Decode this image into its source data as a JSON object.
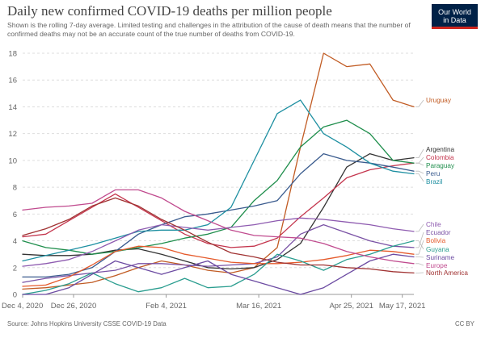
{
  "header": {
    "title": "Daily new confirmed COVID-19 deaths per million people",
    "subtitle": "Shown is the rolling 7-day average. Limited testing and challenges in the attribution of the cause of death means that the number of confirmed deaths may not be an accurate count of the true number of deaths from COVID-19.",
    "logo_line1": "Our World",
    "logo_line2": "in Data"
  },
  "footer": {
    "source": "Source: Johns Hopkins University CSSE COVID-19 Data",
    "license": "CC BY"
  },
  "chart_data": {
    "type": "line",
    "title": "Daily new confirmed COVID-19 deaths per million people",
    "xlabel": "",
    "ylabel": "",
    "x_domain_days": [
      0,
      169
    ],
    "ylim": [
      0,
      18
    ],
    "y_ticks": [
      0,
      2,
      4,
      6,
      8,
      10,
      12,
      14,
      16,
      18
    ],
    "x_ticks": [
      {
        "day": 0,
        "label": "Dec 4, 2020"
      },
      {
        "day": 22,
        "label": "Dec 26, 2020"
      },
      {
        "day": 62,
        "label": "Feb 4, 2021"
      },
      {
        "day": 102,
        "label": "Mar 16, 2021"
      },
      {
        "day": 142,
        "label": "Apr 25, 2021"
      },
      {
        "day": 164,
        "label": "May 17, 2021"
      }
    ],
    "grid": true,
    "legend": "right",
    "x": [
      0,
      10,
      20,
      30,
      40,
      50,
      60,
      70,
      80,
      90,
      100,
      110,
      120,
      130,
      140,
      150,
      160,
      169
    ],
    "series": [
      {
        "name": "Uruguay",
        "color": "#c15b23",
        "values": [
          0.4,
          0.5,
          0.7,
          0.9,
          1.4,
          2.0,
          2.5,
          2.2,
          1.8,
          1.6,
          2.0,
          3.5,
          11.0,
          18.0,
          17.0,
          17.2,
          14.5,
          14.0
        ]
      },
      {
        "name": "Argentina",
        "color": "#333333",
        "values": [
          3.0,
          2.9,
          2.9,
          3.0,
          3.3,
          3.4,
          3.0,
          2.5,
          2.0,
          1.9,
          2.0,
          2.6,
          3.8,
          6.5,
          9.5,
          10.5,
          10.0,
          10.2
        ]
      },
      {
        "name": "Colombia",
        "color": "#c4354d",
        "values": [
          4.3,
          4.5,
          5.5,
          6.5,
          7.5,
          6.5,
          5.5,
          4.5,
          3.8,
          3.5,
          3.6,
          4.2,
          5.8,
          7.2,
          8.7,
          9.3,
          9.6,
          9.8
        ]
      },
      {
        "name": "Paraguay",
        "color": "#1f8e4c",
        "values": [
          4.0,
          3.5,
          3.3,
          3.0,
          3.2,
          3.5,
          3.8,
          4.2,
          4.5,
          5.0,
          7.0,
          8.5,
          11.0,
          12.5,
          13.0,
          12.0,
          10.0,
          9.8
        ]
      },
      {
        "name": "Peru",
        "color": "#3a5b8e",
        "values": [
          1.3,
          1.3,
          1.5,
          2.0,
          3.2,
          4.5,
          5.2,
          5.8,
          6.0,
          6.3,
          6.6,
          7.0,
          9.0,
          10.5,
          10.0,
          9.8,
          9.5,
          9.2
        ]
      },
      {
        "name": "Brazil",
        "color": "#1d8fa1",
        "values": [
          2.5,
          2.9,
          3.3,
          3.7,
          4.2,
          4.7,
          4.8,
          4.8,
          5.2,
          6.5,
          10.0,
          13.5,
          14.5,
          12.0,
          11.0,
          9.8,
          9.2,
          9.0
        ]
      },
      {
        "name": "Chile",
        "color": "#8e5bb0",
        "values": [
          2.1,
          2.3,
          2.6,
          3.2,
          4.0,
          4.8,
          5.2,
          5.0,
          4.8,
          5.0,
          5.2,
          5.5,
          5.7,
          5.6,
          5.4,
          5.2,
          4.9,
          4.7
        ]
      },
      {
        "name": "Ecuador",
        "color": "#7a52a5",
        "values": [
          0.9,
          1.2,
          1.4,
          1.6,
          1.8,
          2.3,
          2.3,
          2.2,
          2.1,
          2.2,
          2.3,
          2.8,
          4.5,
          5.2,
          4.6,
          4.0,
          3.6,
          3.5
        ]
      },
      {
        "name": "Bolivia",
        "color": "#e55a2b",
        "values": [
          0.6,
          0.7,
          1.3,
          2.2,
          3.2,
          3.6,
          3.5,
          3.0,
          2.7,
          2.4,
          2.3,
          2.3,
          2.4,
          2.6,
          2.9,
          3.3,
          3.2,
          3.0
        ]
      },
      {
        "name": "Guyana",
        "color": "#2a9d8f",
        "values": [
          0.0,
          0.3,
          0.8,
          1.6,
          0.8,
          0.2,
          0.5,
          1.2,
          0.5,
          0.6,
          1.5,
          3.0,
          2.5,
          1.8,
          2.6,
          3.0,
          3.6,
          4.0
        ]
      },
      {
        "name": "Suriname",
        "color": "#6c4ba2",
        "values": [
          0.0,
          0.0,
          0.5,
          1.5,
          2.5,
          2.0,
          1.5,
          2.0,
          2.5,
          1.5,
          1.0,
          0.5,
          0.0,
          0.5,
          1.5,
          2.5,
          3.0,
          2.8
        ]
      },
      {
        "name": "Europe",
        "color": "#c04a8e",
        "values": [
          6.3,
          6.5,
          6.6,
          6.8,
          7.8,
          7.8,
          7.2,
          6.2,
          5.5,
          4.8,
          4.4,
          4.3,
          4.2,
          3.8,
          3.2,
          2.8,
          2.5,
          2.3
        ]
      },
      {
        "name": "North America",
        "color": "#a03232",
        "values": [
          4.4,
          4.9,
          5.6,
          6.6,
          7.2,
          6.6,
          5.6,
          4.8,
          3.9,
          3.1,
          2.8,
          2.4,
          2.2,
          2.2,
          2.0,
          1.9,
          1.7,
          1.6
        ]
      }
    ],
    "end_labels_order": [
      "Uruguay",
      "Argentina",
      "Colombia",
      "Paraguay",
      "Peru",
      "Brazil",
      "Chile",
      "Ecuador",
      "Bolivia",
      "Guyana",
      "Suriname",
      "Europe",
      "North America"
    ]
  }
}
